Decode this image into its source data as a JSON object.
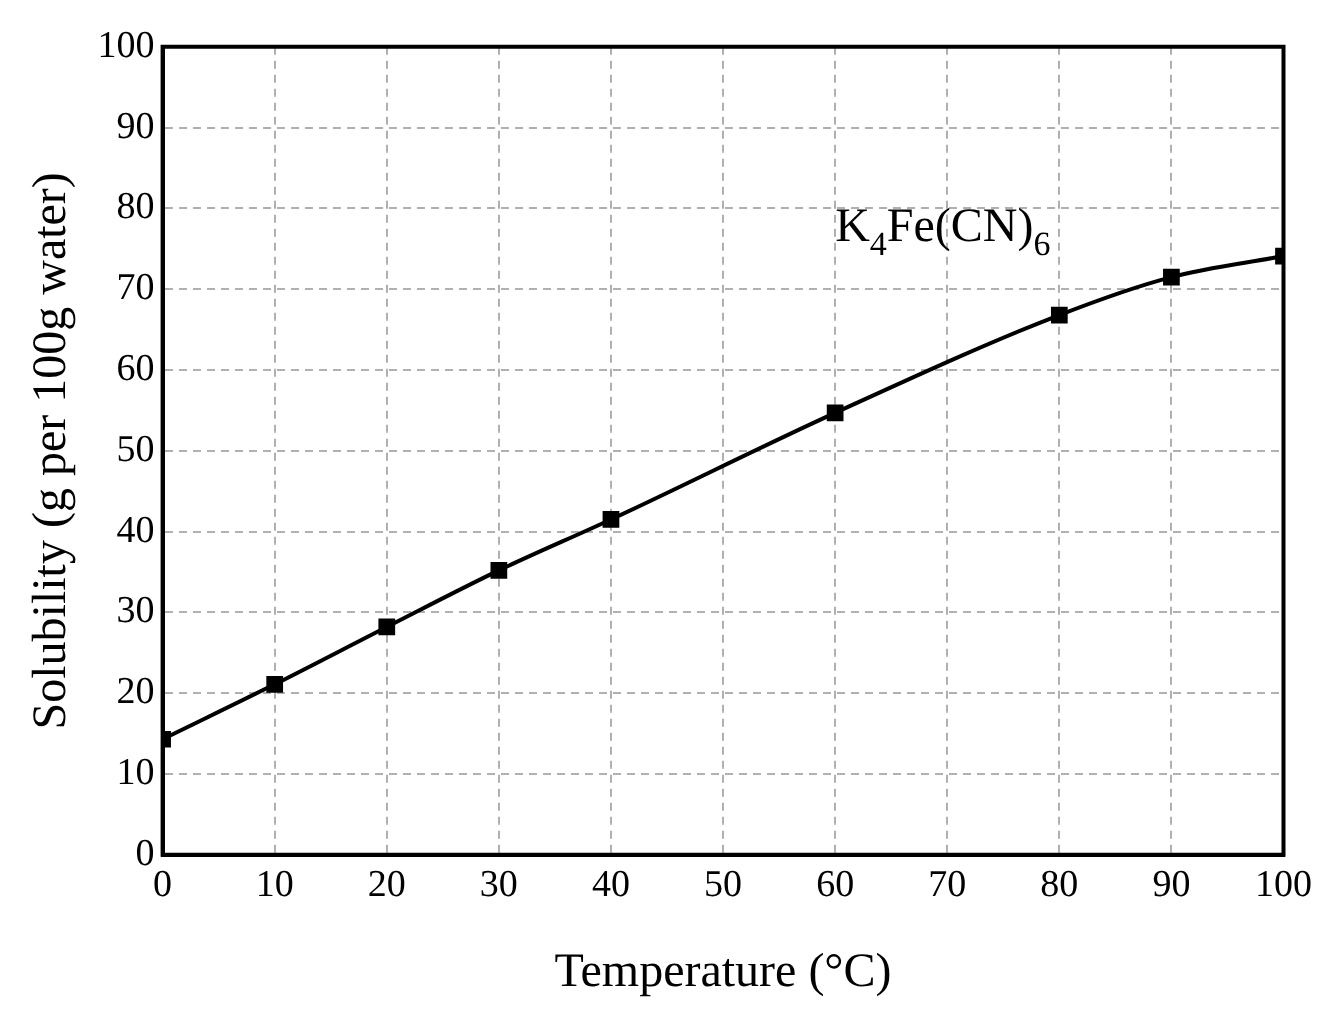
{
  "chart_data": {
    "type": "line",
    "xlabel": "Temperature (°C)",
    "ylabel": "Solubility (g per 100g water)",
    "x": [
      0,
      10,
      20,
      30,
      40,
      60,
      80,
      90,
      100
    ],
    "series": [
      {
        "name": "K$_{4}$Fe(CN)$_{6}$",
        "color": "#000000",
        "values": [
          14.3,
          21.1,
          28.2,
          35.2,
          41.5,
          54.7,
          66.8,
          71.5,
          74.1
        ]
      }
    ],
    "xlim": [
      0,
      100
    ],
    "xticks": [
      0,
      10,
      20,
      30,
      40,
      50,
      60,
      70,
      80,
      90,
      100
    ],
    "ylim": [
      0,
      100
    ],
    "yticks": [
      0,
      10,
      20,
      30,
      40,
      50,
      60,
      70,
      80,
      90,
      100
    ],
    "grid": true,
    "marker": "square",
    "line_style": "solid",
    "legend": false
  }
}
